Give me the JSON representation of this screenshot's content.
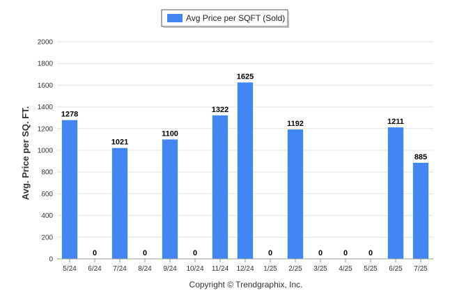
{
  "chart_data": {
    "type": "bar",
    "legend": {
      "label": "Avg Price per SQFT (Sold)",
      "placement": "top-center"
    },
    "categories": [
      "5/24",
      "6/24",
      "7/24",
      "8/24",
      "9/24",
      "10/24",
      "11/24",
      "12/24",
      "1/25",
      "2/25",
      "3/25",
      "4/25",
      "5/25",
      "6/25",
      "7/25"
    ],
    "series": [
      {
        "name": "Avg Price per SQFT (Sold)",
        "values": [
          1278,
          0,
          1021,
          0,
          1100,
          0,
          1322,
          1625,
          0,
          1192,
          0,
          0,
          0,
          1211,
          885
        ]
      }
    ],
    "ylabel": "Avg. Price per SQ. FT.",
    "xlabel": "",
    "ylim": [
      0,
      2000
    ],
    "yticks": [
      0,
      200,
      400,
      600,
      800,
      1000,
      1200,
      1400,
      1600,
      1800,
      2000
    ],
    "grid": true,
    "bar_color": "#4286f4",
    "footer": "Copyright © Trendgraphix, Inc."
  }
}
